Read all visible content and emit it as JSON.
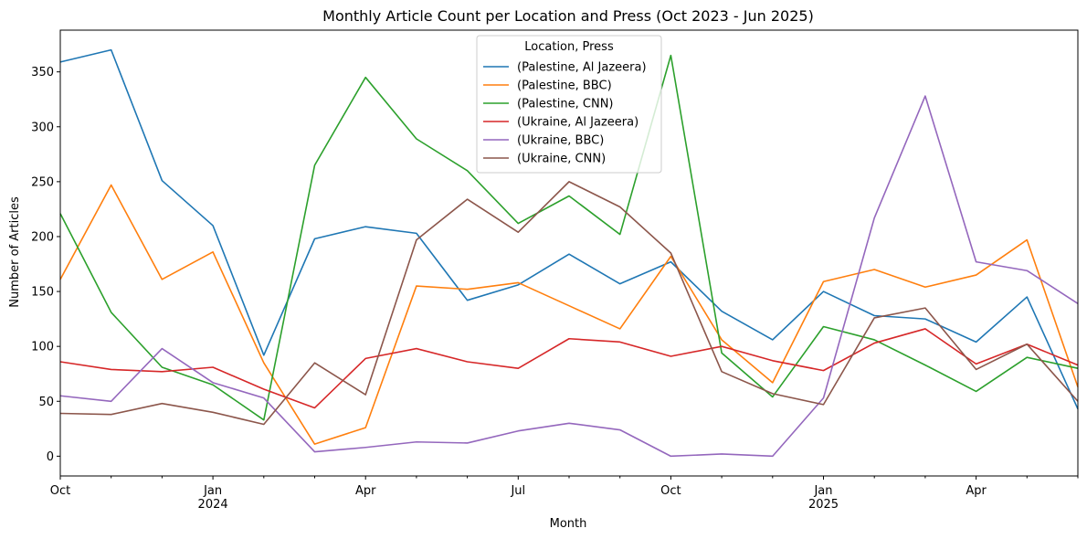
{
  "chart_data": {
    "type": "line",
    "title": "Monthly Article Count per Location and Press (Oct 2023 - Jun 2025)",
    "xlabel": "Month",
    "ylabel": "Number of Articles",
    "x": [
      "2023-10",
      "2023-11",
      "2023-12",
      "2024-01",
      "2024-02",
      "2024-03",
      "2024-04",
      "2024-05",
      "2024-06",
      "2024-07",
      "2024-08",
      "2024-09",
      "2024-10",
      "2024-11",
      "2024-12",
      "2025-01",
      "2025-02",
      "2025-03",
      "2025-04",
      "2025-05",
      "2025-06"
    ],
    "ylim": [
      -18,
      388
    ],
    "yticks": [
      0,
      50,
      100,
      150,
      200,
      250,
      300,
      350
    ],
    "x_major_ticks": [
      {
        "index": 0,
        "label": "Oct",
        "sublabel": ""
      },
      {
        "index": 3,
        "label": "Jan",
        "sublabel": "2024"
      },
      {
        "index": 6,
        "label": "Apr",
        "sublabel": ""
      },
      {
        "index": 9,
        "label": "Jul",
        "sublabel": ""
      },
      {
        "index": 12,
        "label": "Oct",
        "sublabel": ""
      },
      {
        "index": 15,
        "label": "Jan",
        "sublabel": "2025"
      },
      {
        "index": 18,
        "label": "Apr",
        "sublabel": ""
      }
    ],
    "legend_title": "Location, Press",
    "legend_position": "top-center",
    "grid": false,
    "series": [
      {
        "name": "(Palestine, Al Jazeera)",
        "color": "#1f77b4",
        "values": [
          359,
          370,
          251,
          210,
          92,
          198,
          209,
          203,
          142,
          156,
          184,
          157,
          177,
          132,
          106,
          150,
          128,
          125,
          104,
          145,
          43
        ]
      },
      {
        "name": "(Palestine, BBC)",
        "color": "#ff7f0e",
        "values": [
          161,
          247,
          161,
          186,
          85,
          11,
          26,
          155,
          152,
          158,
          137,
          116,
          182,
          106,
          67,
          159,
          170,
          154,
          165,
          197,
          63
        ]
      },
      {
        "name": "(Palestine, CNN)",
        "color": "#2ca02c",
        "values": [
          221,
          131,
          81,
          65,
          33,
          265,
          345,
          289,
          260,
          212,
          237,
          202,
          365,
          94,
          54,
          118,
          106,
          83,
          59,
          90,
          80
        ]
      },
      {
        "name": "(Ukraine, Al Jazeera)",
        "color": "#d62728",
        "values": [
          86,
          79,
          77,
          81,
          61,
          44,
          89,
          98,
          86,
          80,
          107,
          104,
          91,
          100,
          87,
          78,
          103,
          116,
          84,
          102,
          83
        ]
      },
      {
        "name": "(Ukraine, BBC)",
        "color": "#9467bd",
        "values": [
          55,
          50,
          98,
          67,
          53,
          4,
          8,
          13,
          12,
          23,
          30,
          24,
          0,
          2,
          0,
          53,
          217,
          328,
          177,
          169,
          139
        ]
      },
      {
        "name": "(Ukraine, CNN)",
        "color": "#8c564b",
        "values": [
          39,
          38,
          48,
          40,
          29,
          85,
          56,
          197,
          234,
          204,
          250,
          227,
          185,
          77,
          57,
          47,
          126,
          135,
          79,
          102,
          50
        ]
      }
    ]
  }
}
